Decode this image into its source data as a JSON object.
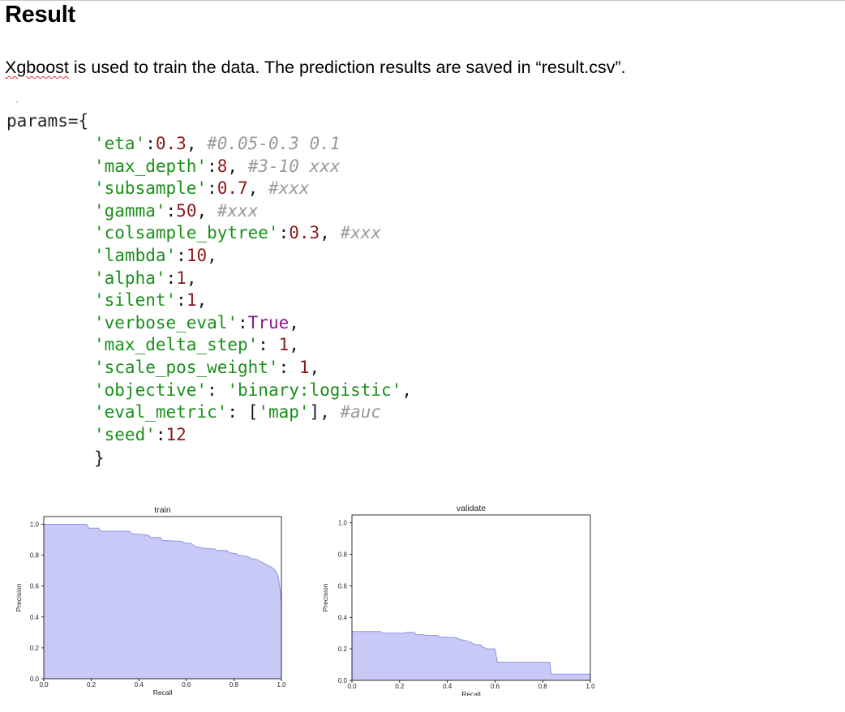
{
  "heading": "Result",
  "paragraph": {
    "first_word": "Xgboost",
    "rest": " is used to train the data. The prediction results are saved in “result.csv”."
  },
  "code": {
    "head": "params={",
    "close": "}",
    "lines": [
      [
        {
          "t": "k",
          "v": "'eta'"
        },
        {
          "t": "p",
          "v": ":"
        },
        {
          "t": "n",
          "v": "0.3"
        },
        {
          "t": "p",
          "v": ", "
        },
        {
          "t": "c",
          "v": "#0.05-0.3 0.1"
        }
      ],
      [
        {
          "t": "k",
          "v": "'max_depth'"
        },
        {
          "t": "p",
          "v": ":"
        },
        {
          "t": "n",
          "v": "8"
        },
        {
          "t": "p",
          "v": ", "
        },
        {
          "t": "c",
          "v": "#3-10 xxx"
        }
      ],
      [
        {
          "t": "k",
          "v": "'subsample'"
        },
        {
          "t": "p",
          "v": ":"
        },
        {
          "t": "n",
          "v": "0.7"
        },
        {
          "t": "p",
          "v": ", "
        },
        {
          "t": "c",
          "v": "#xxx"
        }
      ],
      [
        {
          "t": "k",
          "v": "'gamma'"
        },
        {
          "t": "p",
          "v": ":"
        },
        {
          "t": "n",
          "v": "50"
        },
        {
          "t": "p",
          "v": ", "
        },
        {
          "t": "c",
          "v": "#xxx"
        }
      ],
      [
        {
          "t": "k",
          "v": "'colsample_bytree'"
        },
        {
          "t": "p",
          "v": ":"
        },
        {
          "t": "n",
          "v": "0.3"
        },
        {
          "t": "p",
          "v": ", "
        },
        {
          "t": "c",
          "v": "#xxx"
        }
      ],
      [
        {
          "t": "k",
          "v": "'lambda'"
        },
        {
          "t": "p",
          "v": ":"
        },
        {
          "t": "n",
          "v": "10"
        },
        {
          "t": "p",
          "v": ","
        }
      ],
      [
        {
          "t": "k",
          "v": "'alpha'"
        },
        {
          "t": "p",
          "v": ":"
        },
        {
          "t": "n",
          "v": "1"
        },
        {
          "t": "p",
          "v": ","
        }
      ],
      [
        {
          "t": "k",
          "v": "'silent'"
        },
        {
          "t": "p",
          "v": ":"
        },
        {
          "t": "n",
          "v": "1"
        },
        {
          "t": "p",
          "v": ","
        }
      ],
      [
        {
          "t": "k",
          "v": "'verbose_eval'"
        },
        {
          "t": "p",
          "v": ":"
        },
        {
          "t": "t",
          "v": "True"
        },
        {
          "t": "p",
          "v": ","
        }
      ],
      [
        {
          "t": "k",
          "v": "'max_delta_step'"
        },
        {
          "t": "p",
          "v": ": "
        },
        {
          "t": "n",
          "v": "1"
        },
        {
          "t": "p",
          "v": ","
        }
      ],
      [
        {
          "t": "k",
          "v": "'scale_pos_weight'"
        },
        {
          "t": "p",
          "v": ": "
        },
        {
          "t": "n",
          "v": "1"
        },
        {
          "t": "p",
          "v": ","
        }
      ],
      [
        {
          "t": "k",
          "v": "'objective'"
        },
        {
          "t": "p",
          "v": ": "
        },
        {
          "t": "k",
          "v": "'binary:logistic'"
        },
        {
          "t": "p",
          "v": ","
        }
      ],
      [
        {
          "t": "k",
          "v": "'eval_metric'"
        },
        {
          "t": "p",
          "v": ": ["
        },
        {
          "t": "k",
          "v": "'map'"
        },
        {
          "t": "p",
          "v": "], "
        },
        {
          "t": "c",
          "v": "#auc"
        }
      ],
      [
        {
          "t": "k",
          "v": "'seed'"
        },
        {
          "t": "p",
          "v": ":"
        },
        {
          "t": "n",
          "v": "12"
        }
      ]
    ]
  },
  "chart_data": [
    {
      "type": "area",
      "title": "train",
      "xlabel": "Recall",
      "ylabel": "Precision",
      "xlim": [
        0,
        1
      ],
      "ylim": [
        0,
        1.05
      ],
      "xticks": [
        "0.0",
        "0.2",
        "0.4",
        "0.6",
        "0.8",
        "1.0"
      ],
      "yticks": [
        "0.0",
        "0.2",
        "0.4",
        "0.6",
        "0.8",
        "1.0"
      ],
      "fill_color": "#c9c9f8",
      "line_color": "#9090e8",
      "x": [
        0.0,
        0.18,
        0.19,
        0.23,
        0.24,
        0.36,
        0.37,
        0.44,
        0.45,
        0.49,
        0.5,
        0.58,
        0.59,
        0.62,
        0.64,
        0.66,
        0.67,
        0.72,
        0.73,
        0.77,
        0.78,
        0.81,
        0.82,
        0.86,
        0.87,
        0.9,
        0.91,
        0.93,
        0.94,
        0.96,
        0.975,
        0.985,
        0.99,
        0.995,
        1.0
      ],
      "y": [
        1.0,
        1.0,
        0.975,
        0.975,
        0.955,
        0.955,
        0.94,
        0.93,
        0.915,
        0.915,
        0.895,
        0.89,
        0.88,
        0.875,
        0.855,
        0.85,
        0.845,
        0.84,
        0.83,
        0.83,
        0.815,
        0.81,
        0.8,
        0.79,
        0.78,
        0.77,
        0.76,
        0.745,
        0.735,
        0.72,
        0.7,
        0.67,
        0.63,
        0.57,
        0.5
      ]
    },
    {
      "type": "area",
      "title": "validate",
      "xlabel": "Recall",
      "ylabel": "Precision",
      "xlim": [
        0,
        1
      ],
      "ylim": [
        0,
        1.05
      ],
      "xticks": [
        "0.0",
        "0.2",
        "0.4",
        "0.6",
        "0.8",
        "1.0"
      ],
      "yticks": [
        "0.0",
        "0.2",
        "0.4",
        "0.6",
        "0.8",
        "1.0"
      ],
      "fill_color": "#c9c9f8",
      "line_color": "#9090e8",
      "x": [
        0.0,
        0.12,
        0.125,
        0.22,
        0.23,
        0.26,
        0.27,
        0.3,
        0.31,
        0.36,
        0.37,
        0.44,
        0.45,
        0.47,
        0.48,
        0.5,
        0.51,
        0.54,
        0.55,
        0.56,
        0.565,
        0.6,
        0.61,
        0.83,
        0.835,
        1.0
      ],
      "y": [
        0.31,
        0.31,
        0.3,
        0.3,
        0.305,
        0.305,
        0.29,
        0.29,
        0.285,
        0.285,
        0.275,
        0.27,
        0.26,
        0.255,
        0.25,
        0.24,
        0.23,
        0.225,
        0.21,
        0.205,
        0.2,
        0.2,
        0.115,
        0.115,
        0.04,
        0.04
      ]
    }
  ]
}
